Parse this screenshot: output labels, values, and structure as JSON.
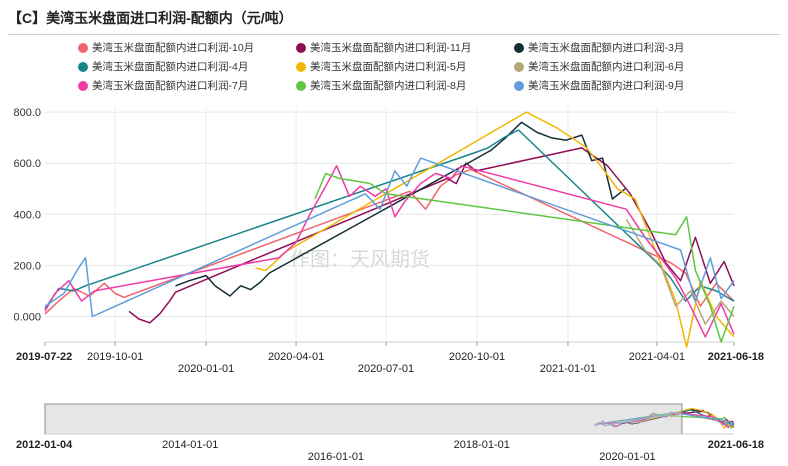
{
  "title": "【C】美湾玉米盘面进口利润-配额内（元/吨）",
  "watermark": "作图：天风期货",
  "chart_data": {
    "type": "line",
    "title": "【C】美湾玉米盘面进口利润-配额内（元/吨）",
    "xlabel": "",
    "ylabel": "",
    "ylim": [
      -100,
      820
    ],
    "y_ticks": [
      "800.0",
      "600.0",
      "400.0",
      "200.0",
      "0.000"
    ],
    "y_tick_values": [
      800,
      600,
      400,
      200,
      0
    ],
    "x_range": [
      "2019-07-22",
      "2021-06-18"
    ],
    "x_ticks": [
      {
        "date": "2019-07-22",
        "label": "2019-07-22",
        "row": 0,
        "bold": true
      },
      {
        "date": "2019-10-01",
        "label": "2019-10-01",
        "row": 0,
        "bold": false
      },
      {
        "date": "2020-01-01",
        "label": "2020-01-01",
        "row": 1,
        "bold": false
      },
      {
        "date": "2020-04-01",
        "label": "2020-04-01",
        "row": 0,
        "bold": false
      },
      {
        "date": "2020-07-01",
        "label": "2020-07-01",
        "row": 1,
        "bold": false
      },
      {
        "date": "2020-10-01",
        "label": "2020-10-01",
        "row": 0,
        "bold": false
      },
      {
        "date": "2021-01-01",
        "label": "2021-01-01",
        "row": 1,
        "bold": false
      },
      {
        "date": "2021-04-01",
        "label": "2021-04-01",
        "row": 0,
        "bold": false
      },
      {
        "date": "2021-06-18",
        "label": "2021-06-18",
        "row": 0,
        "bold": true
      }
    ],
    "grid": true,
    "legend_position": "top",
    "series": [
      {
        "name": "美湾玉米盘面配额内进口利润-10月",
        "color": "#f2636b",
        "points": [
          [
            "2019-07-22",
            10
          ],
          [
            "2019-08-05",
            60
          ],
          [
            "2019-08-20",
            110
          ],
          [
            "2019-09-05",
            80
          ],
          [
            "2019-09-20",
            130
          ],
          [
            "2019-10-01",
            90
          ],
          [
            "2019-10-10",
            75
          ],
          [
            "2020-07-25",
            490
          ],
          [
            "2020-08-10",
            420
          ],
          [
            "2020-08-25",
            510
          ],
          [
            "2020-09-10",
            555
          ],
          [
            "2020-09-25",
            575
          ],
          [
            "2021-04-15",
            210
          ],
          [
            "2021-04-30",
            170
          ],
          [
            "2021-05-15",
            40
          ],
          [
            "2021-05-31",
            130
          ],
          [
            "2021-06-18",
            60
          ]
        ]
      },
      {
        "name": "美湾玉米盘面配额内进口利润-11月",
        "color": "#8e0f56",
        "points": [
          [
            "2019-10-15",
            20
          ],
          [
            "2019-10-25",
            -10
          ],
          [
            "2019-11-05",
            -25
          ],
          [
            "2019-11-15",
            10
          ],
          [
            "2019-11-25",
            60
          ],
          [
            "2019-12-01",
            95
          ],
          [
            "2020-09-01",
            540
          ],
          [
            "2020-09-10",
            520
          ],
          [
            "2020-09-20",
            600
          ],
          [
            "2020-09-30",
            570
          ],
          [
            "2021-01-15",
            660
          ],
          [
            "2021-02-10",
            590
          ],
          [
            "2021-03-05",
            480
          ],
          [
            "2021-03-25",
            340
          ],
          [
            "2021-04-10",
            210
          ],
          [
            "2021-04-25",
            140
          ],
          [
            "2021-05-10",
            310
          ],
          [
            "2021-05-25",
            130
          ],
          [
            "2021-06-08",
            215
          ],
          [
            "2021-06-18",
            120
          ]
        ]
      },
      {
        "name": "美湾玉米盘面配额内进口利润-3月",
        "color": "#132f35",
        "points": [
          [
            "2019-12-01",
            120
          ],
          [
            "2019-12-15",
            140
          ],
          [
            "2020-01-01",
            160
          ],
          [
            "2020-01-10",
            120
          ],
          [
            "2020-01-25",
            80
          ],
          [
            "2020-02-05",
            120
          ],
          [
            "2020-02-15",
            105
          ],
          [
            "2020-02-25",
            135
          ],
          [
            "2020-03-05",
            170
          ],
          [
            "2020-10-01",
            620
          ],
          [
            "2020-10-15",
            650
          ],
          [
            "2020-10-30",
            700
          ],
          [
            "2020-11-15",
            760
          ],
          [
            "2020-12-01",
            720
          ],
          [
            "2020-12-15",
            700
          ],
          [
            "2020-12-30",
            690
          ],
          [
            "2021-01-15",
            710
          ],
          [
            "2021-01-25",
            610
          ],
          [
            "2021-02-05",
            620
          ],
          [
            "2021-02-15",
            460
          ],
          [
            "2021-02-28",
            500
          ]
        ]
      },
      {
        "name": "美湾玉米盘面配额内进口利润-4月",
        "color": "#17858a",
        "points": [
          [
            "2019-07-22",
            30
          ],
          [
            "2019-08-05",
            110
          ],
          [
            "2019-08-20",
            100
          ],
          [
            "2019-09-01",
            120
          ],
          [
            "2020-09-28",
            640
          ],
          [
            "2020-10-12",
            660
          ],
          [
            "2020-10-28",
            700
          ],
          [
            "2020-11-12",
            730
          ],
          [
            "2021-04-01",
            210
          ],
          [
            "2021-04-15",
            150
          ],
          [
            "2021-04-30",
            60
          ],
          [
            "2021-05-15",
            120
          ],
          [
            "2021-05-31",
            100
          ],
          [
            "2021-06-18",
            60
          ]
        ]
      },
      {
        "name": "美湾玉米盘面配额内进口利润-5月",
        "color": "#f2b705",
        "points": [
          [
            "2020-02-20",
            190
          ],
          [
            "2020-03-01",
            180
          ],
          [
            "2020-03-10",
            210
          ],
          [
            "2020-03-20",
            250
          ],
          [
            "2020-11-20",
            800
          ],
          [
            "2020-12-05",
            770
          ],
          [
            "2020-12-20",
            740
          ],
          [
            "2021-01-05",
            700
          ],
          [
            "2021-01-20",
            660
          ],
          [
            "2021-02-05",
            580
          ],
          [
            "2021-02-20",
            500
          ],
          [
            "2021-03-10",
            460
          ],
          [
            "2021-04-20",
            60
          ],
          [
            "2021-05-01",
            -120
          ],
          [
            "2021-05-15",
            140
          ],
          [
            "2021-05-31",
            0
          ],
          [
            "2021-06-18",
            -80
          ]
        ]
      },
      {
        "name": "美湾玉米盘面配额内进口利润-6月",
        "color": "#b7a77a",
        "points": [
          [
            "2021-03-01",
            380
          ],
          [
            "2021-03-20",
            260
          ],
          [
            "2021-04-05",
            200
          ],
          [
            "2021-04-20",
            40
          ],
          [
            "2021-05-05",
            100
          ],
          [
            "2021-05-20",
            -30
          ],
          [
            "2021-06-05",
            60
          ],
          [
            "2021-06-18",
            0
          ]
        ]
      },
      {
        "name": "美湾玉米盘面配额内进口利润-7月",
        "color": "#f03aa6",
        "points": [
          [
            "2019-07-22",
            20
          ],
          [
            "2019-08-01",
            90
          ],
          [
            "2019-08-15",
            140
          ],
          [
            "2019-08-28",
            60
          ],
          [
            "2019-09-10",
            100
          ],
          [
            "2020-03-15",
            230
          ],
          [
            "2020-04-01",
            290
          ],
          [
            "2020-04-15",
            400
          ],
          [
            "2020-05-01",
            510
          ],
          [
            "2020-05-12",
            590
          ],
          [
            "2020-05-25",
            470
          ],
          [
            "2020-06-05",
            510
          ],
          [
            "2020-06-20",
            470
          ],
          [
            "2020-07-01",
            500
          ],
          [
            "2020-07-10",
            390
          ],
          [
            "2020-07-20",
            450
          ],
          [
            "2020-08-05",
            520
          ],
          [
            "2020-08-20",
            560
          ],
          [
            "2020-09-05",
            540
          ],
          [
            "2020-09-15",
            590
          ],
          [
            "2021-03-01",
            420
          ],
          [
            "2021-03-20",
            310
          ],
          [
            "2021-04-05",
            230
          ],
          [
            "2021-04-20",
            150
          ],
          [
            "2021-05-05",
            40
          ],
          [
            "2021-05-20",
            -80
          ],
          [
            "2021-06-05",
            50
          ],
          [
            "2021-06-18",
            -70
          ]
        ]
      },
      {
        "name": "美湾玉米盘面配额内进口利润-8月",
        "color": "#5cc842",
        "points": [
          [
            "2020-04-20",
            460
          ],
          [
            "2020-05-01",
            560
          ],
          [
            "2020-05-15",
            540
          ],
          [
            "2020-06-01",
            530
          ],
          [
            "2020-06-15",
            520
          ],
          [
            "2020-07-01",
            480
          ],
          [
            "2021-04-20",
            320
          ],
          [
            "2021-05-01",
            390
          ],
          [
            "2021-05-10",
            180
          ],
          [
            "2021-05-25",
            40
          ],
          [
            "2021-06-05",
            -100
          ],
          [
            "2021-06-18",
            40
          ]
        ]
      },
      {
        "name": "美湾玉米盘面配额内进口利润-9月",
        "color": "#5e9edb",
        "points": [
          [
            "2019-07-22",
            40
          ],
          [
            "2019-08-10",
            90
          ],
          [
            "2019-08-25",
            190
          ],
          [
            "2019-09-01",
            230
          ],
          [
            "2019-09-08",
            0
          ],
          [
            "2020-06-10",
            480
          ],
          [
            "2020-06-25",
            420
          ],
          [
            "2020-07-10",
            570
          ],
          [
            "2020-07-22",
            510
          ],
          [
            "2020-08-05",
            620
          ],
          [
            "2021-04-25",
            260
          ],
          [
            "2021-05-10",
            60
          ],
          [
            "2021-05-25",
            230
          ],
          [
            "2021-06-05",
            70
          ],
          [
            "2021-06-18",
            140
          ]
        ]
      }
    ],
    "overview": {
      "range": [
        "2012-01-04",
        "2021-06-18"
      ],
      "selection": [
        "2012-01-04",
        "2020-09-30"
      ],
      "ticks": [
        {
          "date": "2012-01-04",
          "label": "2012-01-04",
          "row": 0,
          "bold": true
        },
        {
          "date": "2014-01-01",
          "label": "2014-01-01",
          "row": 0,
          "bold": false
        },
        {
          "date": "2016-01-01",
          "label": "2016-01-01",
          "row": 1,
          "bold": false
        },
        {
          "date": "2018-01-01",
          "label": "2018-01-01",
          "row": 0,
          "bold": false
        },
        {
          "date": "2020-01-01",
          "label": "2020-01-01",
          "row": 1,
          "bold": false
        },
        {
          "date": "2021-06-18",
          "label": "2021-06-18",
          "row": 0,
          "bold": true
        }
      ]
    }
  }
}
